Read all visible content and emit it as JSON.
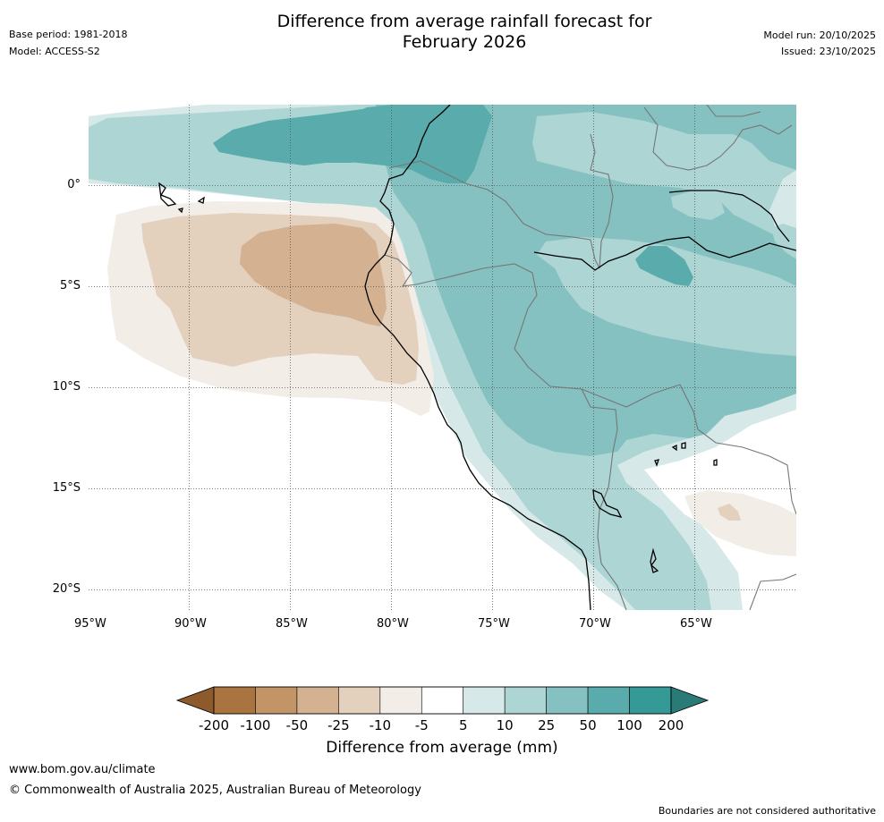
{
  "header": {
    "title_line1": "Difference from average rainfall forecast for",
    "title_line2": "February 2026",
    "base_period": "Base period: 1981-2018",
    "model": "Model: ACCESS-S2",
    "model_run": "Model run: 20/10/2025",
    "issued": "Issued: 23/10/2025"
  },
  "map": {
    "lon_labels": [
      "95°W",
      "90°W",
      "85°W",
      "80°W",
      "75°W",
      "70°W",
      "65°W"
    ],
    "lat_labels": [
      "0°",
      "5°S",
      "10°S",
      "15°S",
      "20°S"
    ]
  },
  "colorbar": {
    "ticks": [
      "-200",
      "-100",
      "-50",
      "-25",
      "-10",
      "-5",
      "5",
      "10",
      "25",
      "50",
      "100",
      "200"
    ],
    "colors": [
      "#8c5a2b",
      "#aa7440",
      "#c39566",
      "#d3b191",
      "#e3d0bd",
      "#f2ede7",
      "#ffffff",
      "#d6e9e8",
      "#acd5d4",
      "#84c1c0",
      "#5aabab",
      "#359996",
      "#2a7a78"
    ],
    "label": "Difference from average (mm)"
  },
  "footer": {
    "website": "www.bom.gov.au/climate",
    "copyright": "© Commonwealth of Australia 2025, Australian Bureau of Meteorology",
    "disclaimer": "Boundaries are not considered authoritative"
  }
}
